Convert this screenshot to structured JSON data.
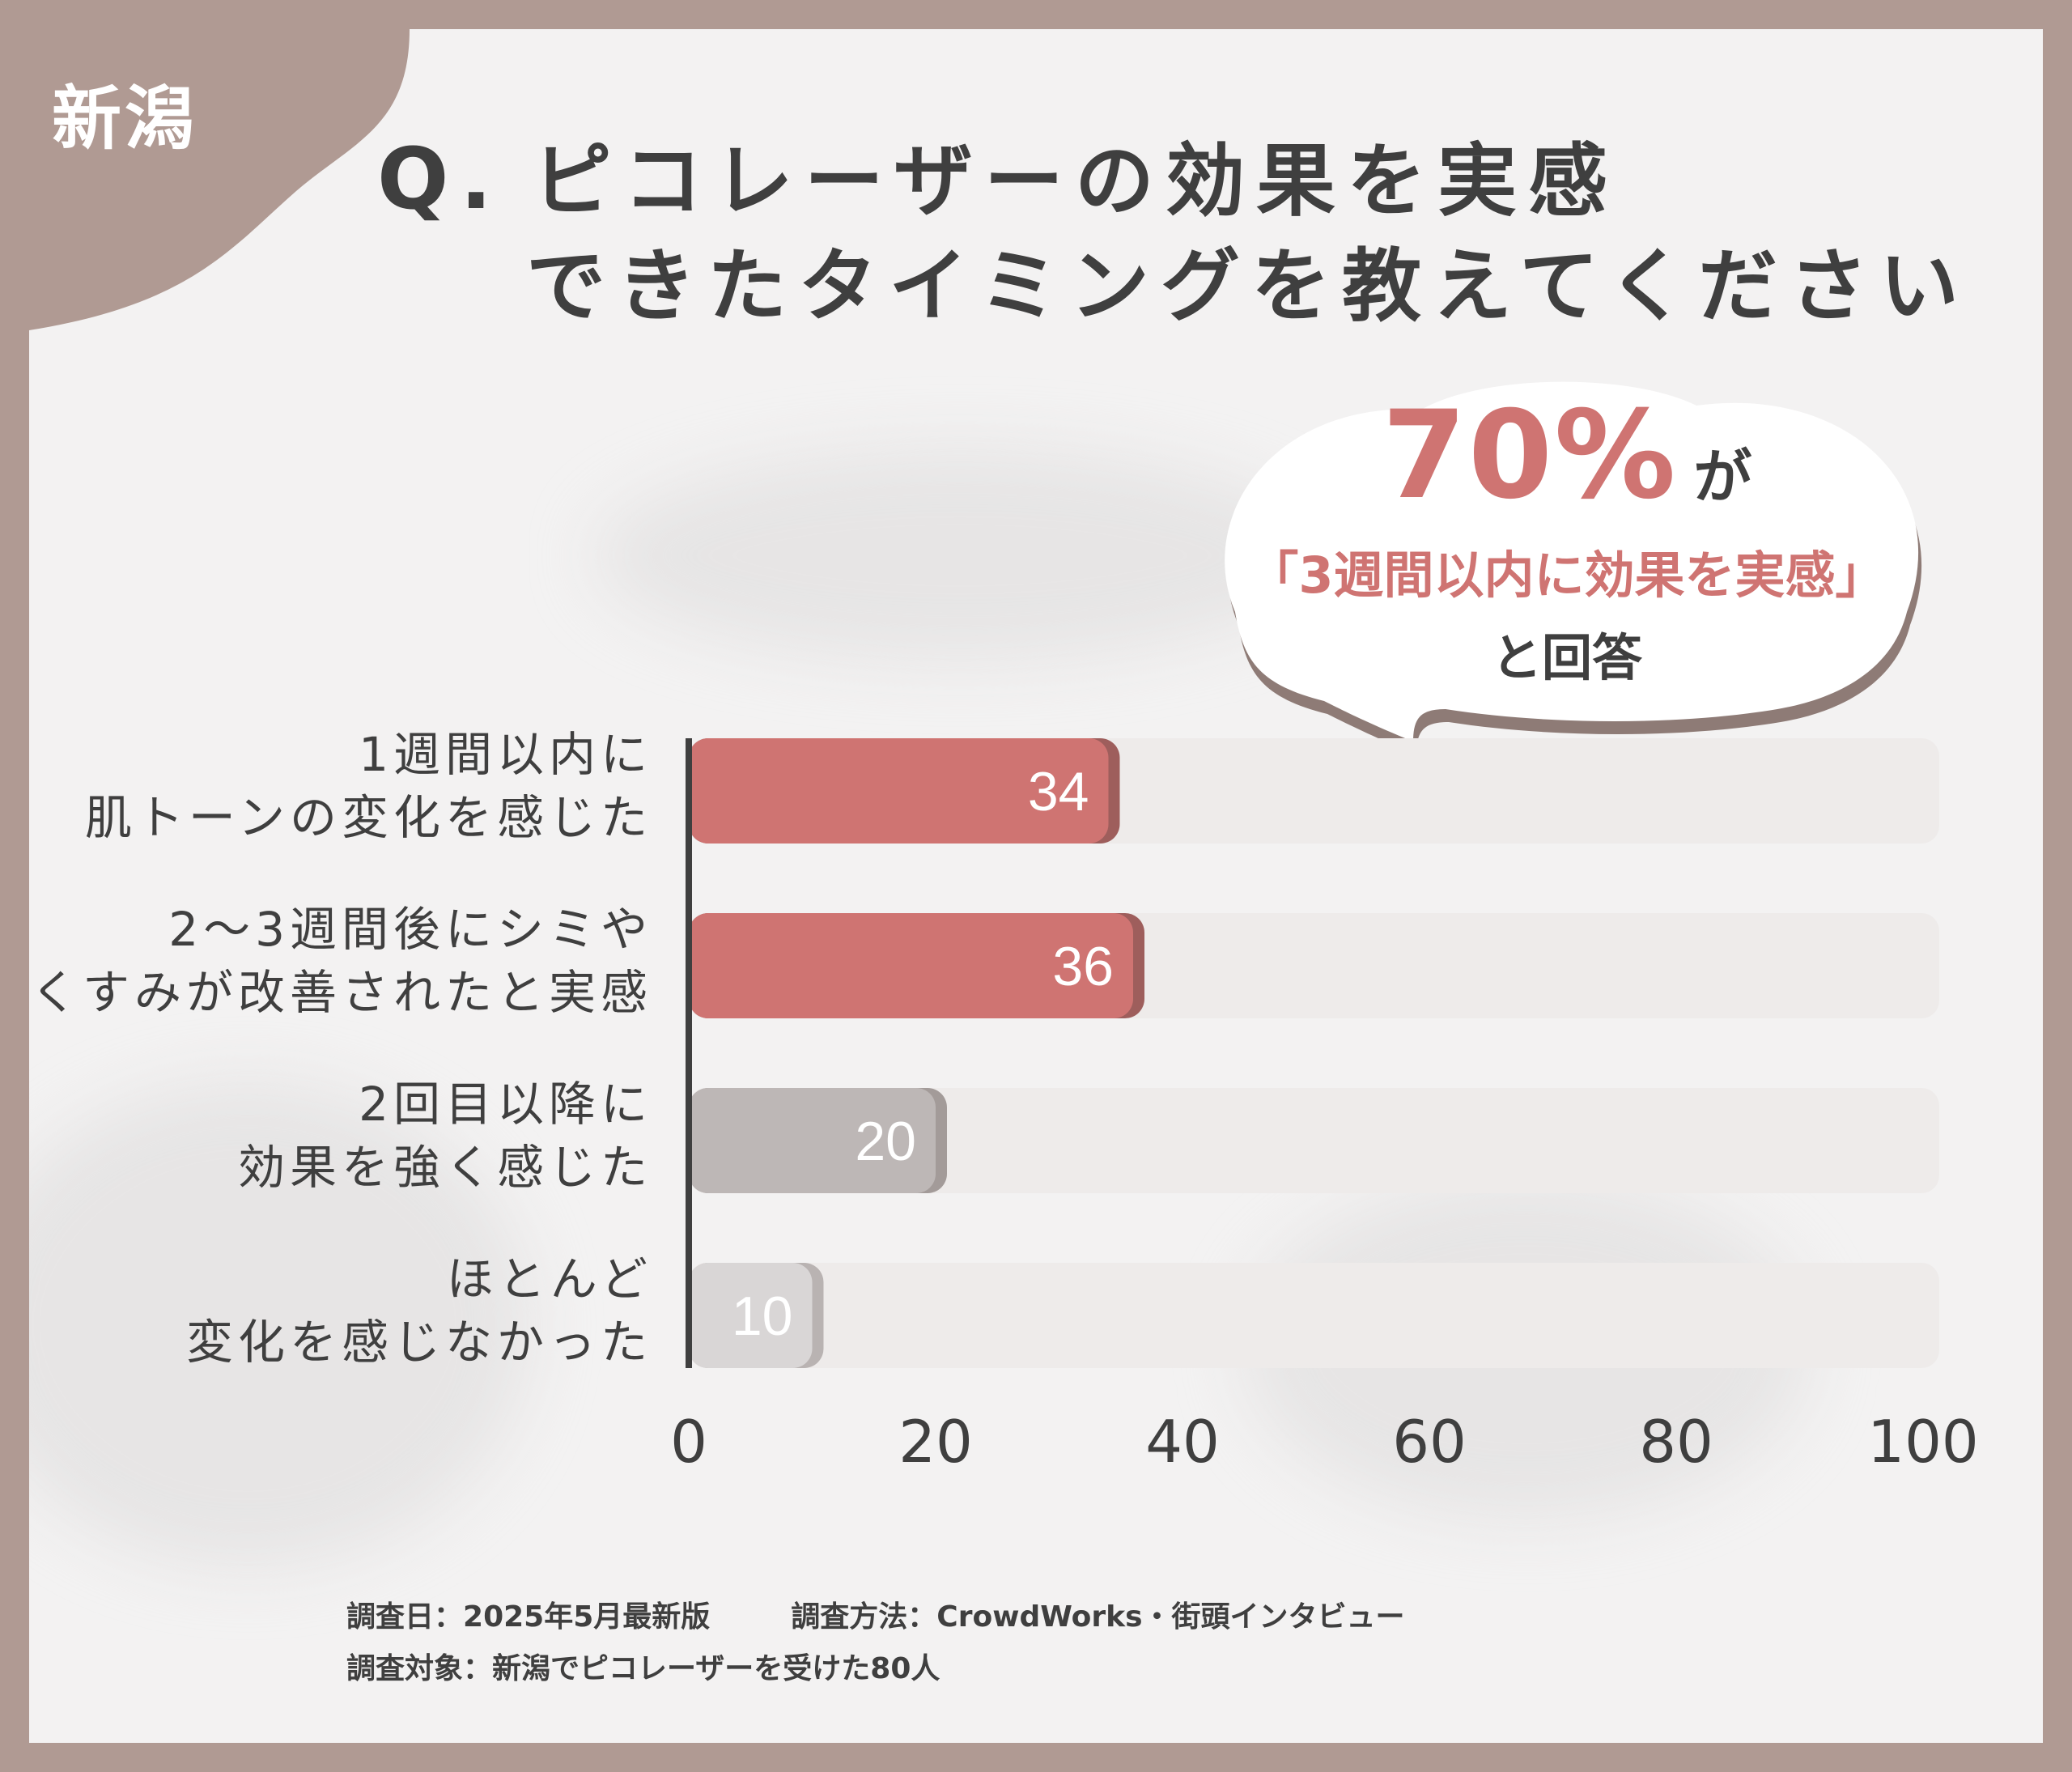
{
  "header": {
    "region": "新潟",
    "title_q": "Q.",
    "title_line1": "ピコレーザーの効果を実感",
    "title_line2": "できたタイミングを教えてください"
  },
  "callout": {
    "percent": "70%",
    "particle": "が",
    "highlight": "「3週間以内に効果を実感」",
    "answer": "と回答"
  },
  "chart_data": {
    "type": "bar",
    "orientation": "horizontal",
    "categories": [
      [
        "1週間以内に",
        "肌トーンの変化を感じた"
      ],
      [
        "2〜3週間後にシミや",
        "くすみが改善されたと実感"
      ],
      [
        "2回目以降に",
        "効果を強く感じた"
      ],
      [
        "ほとんど",
        "変化を感じなかった"
      ]
    ],
    "values": [
      34,
      36,
      20,
      10
    ],
    "xlim": [
      0,
      100
    ],
    "xticks": [
      0,
      20,
      40,
      60,
      80,
      100
    ],
    "grid": false,
    "legend": "none",
    "colors": [
      "#cf7472",
      "#cf7472",
      "#bdb7b6",
      "#d9d6d6"
    ],
    "shadow_colors": [
      "#9e5e5c",
      "#9e5e5c",
      "#a39b99",
      "#b9b3b2"
    ],
    "track_color": "#eeebea",
    "label_colors": [
      "#ffffff",
      "#ffffff",
      "#ffffff",
      "#ffffff"
    ]
  },
  "footer": {
    "date_label": "調査日：",
    "date_value": "2025年5月最新版",
    "method_label": "調査方法：",
    "method_value": "CrowdWorks・街頭インタビュー",
    "target_label": "調査対象：",
    "target_value": "新潟でピコレーザーを受けた80人"
  }
}
